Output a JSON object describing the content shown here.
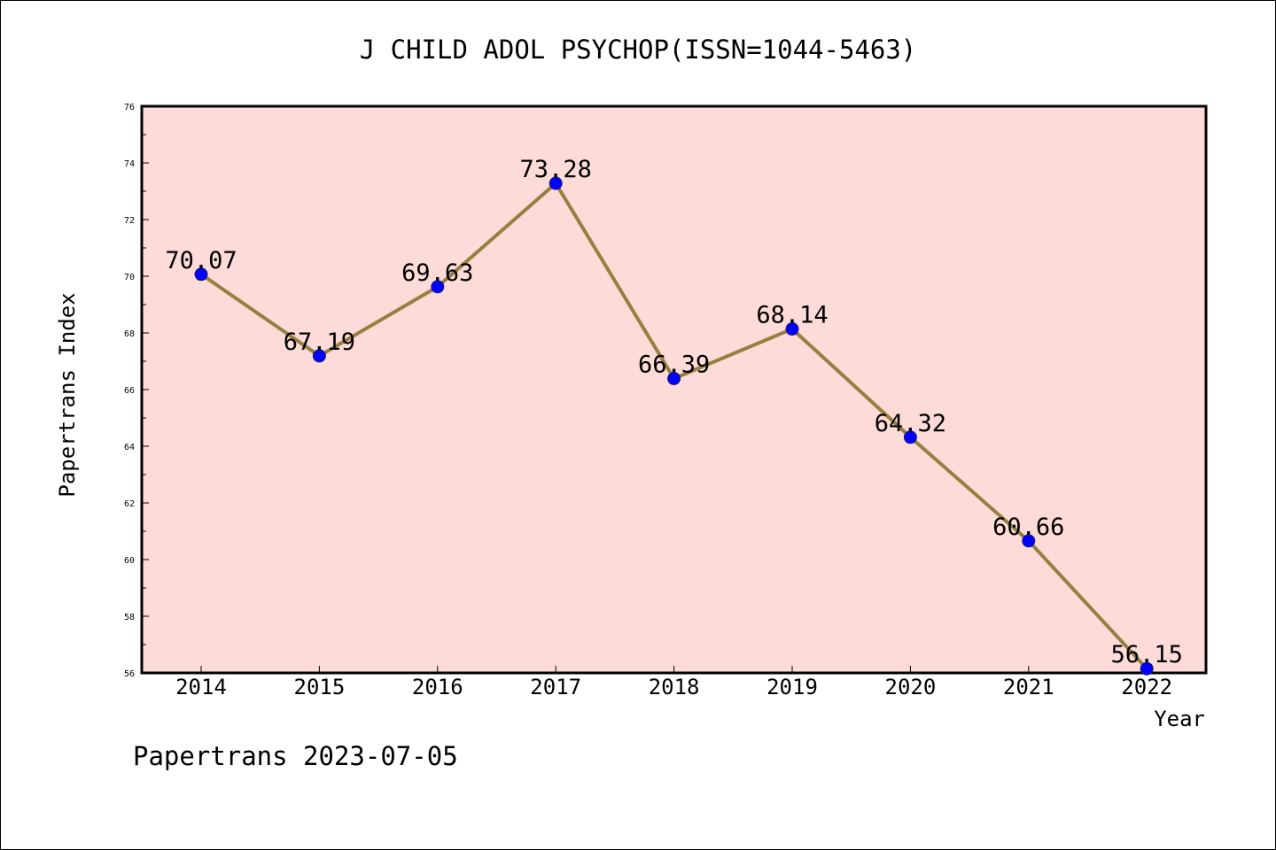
{
  "chart_data": {
    "type": "line",
    "title": "J CHILD ADOL PSYCHOP(ISSN=1044-5463)",
    "xlabel": "Year",
    "ylabel": "Papertrans Index",
    "x": [
      "2014",
      "2015",
      "2016",
      "2017",
      "2018",
      "2019",
      "2020",
      "2021",
      "2022"
    ],
    "series": [
      {
        "values": [
          70.07,
          67.19,
          69.63,
          73.28,
          66.39,
          68.14,
          64.32,
          60.66,
          56.15
        ],
        "labels": [
          "70.07",
          "67.19",
          "69.63",
          "73.28",
          "66.39",
          "68.14",
          "64.32",
          "60.66",
          "56.15"
        ]
      }
    ],
    "ylim": [
      56,
      76
    ],
    "yticks": [
      "56",
      "58",
      "60",
      "62",
      "64",
      "66",
      "68",
      "70",
      "72",
      "74",
      "76"
    ],
    "grid": false,
    "footer": "Papertrans 2023-07-05"
  },
  "colors": {
    "plot_background": "#fddbd8",
    "line": "#968040",
    "marker": "#0000ff",
    "text": "#000000"
  }
}
